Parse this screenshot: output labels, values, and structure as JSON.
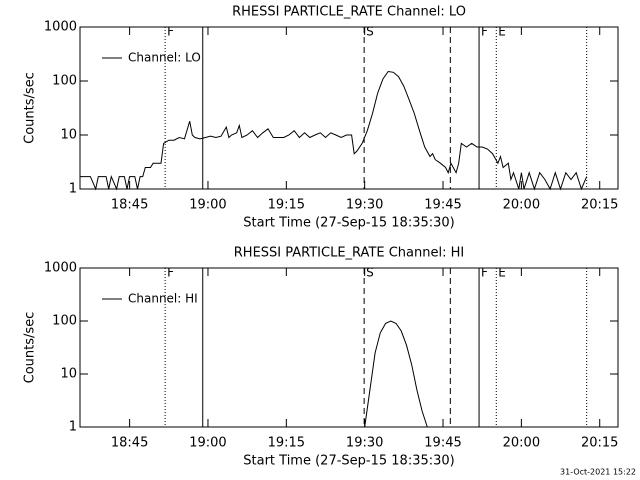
{
  "footer": "31-Oct-2021 15:22",
  "chart_data": [
    {
      "type": "line",
      "title": "RHESSI PARTICLE_RATE Channel: LO",
      "xlabel": "Start Time (27-Sep-15 18:35:30)",
      "ylabel": "Counts/sec",
      "log_y": true,
      "xlim": [
        0,
        103
      ],
      "ylim": [
        1,
        1000
      ],
      "xticks": [
        {
          "value": 9.5,
          "label": "18:45"
        },
        {
          "value": 24.5,
          "label": "19:00"
        },
        {
          "value": 39.5,
          "label": "19:15"
        },
        {
          "value": 54.5,
          "label": "19:30"
        },
        {
          "value": 69.5,
          "label": "19:45"
        },
        {
          "value": 84.5,
          "label": "20:00"
        },
        {
          "value": 99.5,
          "label": "20:15"
        }
      ],
      "yticks": [
        1,
        10,
        100,
        1000
      ],
      "legend": "upper left",
      "vlines": [
        {
          "x": 16.3,
          "style": "dotted",
          "label": "F"
        },
        {
          "x": 23.5,
          "style": "solid"
        },
        {
          "x": 54.4,
          "style": "dashed",
          "label": "S"
        },
        {
          "x": 70.9,
          "style": "dashed"
        },
        {
          "x": 76.4,
          "style": "solid",
          "label": "F"
        },
        {
          "x": 79.7,
          "style": "dotted",
          "label": "E"
        },
        {
          "x": 97.0,
          "style": "dotted"
        }
      ],
      "x": [
        0,
        2,
        3,
        3.5,
        5,
        5.5,
        6,
        7,
        7.5,
        8.5,
        9,
        9.5,
        10.5,
        11,
        11.5,
        12,
        12.5,
        13.5,
        14,
        15.5,
        16,
        17,
        18,
        19,
        20,
        21,
        21.5,
        22,
        23,
        24,
        25,
        26,
        27,
        28,
        28.5,
        29,
        30,
        30.5,
        31,
        32,
        33,
        34,
        35,
        36,
        37,
        38,
        39,
        40,
        41,
        42,
        43,
        44,
        45,
        46,
        47,
        48,
        49,
        50,
        51,
        52,
        52.5,
        53,
        54,
        55,
        56,
        57,
        58,
        59,
        60,
        61,
        62,
        63,
        64,
        65,
        66,
        67,
        67.5,
        68,
        69,
        70,
        70.5,
        71,
        72,
        72.5,
        73,
        74,
        75,
        76,
        77,
        78,
        79,
        80,
        80.5,
        81,
        82,
        82.5,
        83,
        84,
        84.5,
        85,
        86,
        87,
        88,
        89,
        90,
        91,
        92,
        93,
        94,
        95,
        96,
        97
      ],
      "series": [
        {
          "name": "Channel: LO",
          "color": "#000000",
          "values": [
            1.7,
            1.7,
            1,
            1.7,
            1.7,
            1,
            1.7,
            1,
            1.7,
            1.7,
            1,
            1.7,
            1.7,
            1,
            1.7,
            1.7,
            2.5,
            2.5,
            3,
            3,
            7,
            8,
            8,
            9,
            8.5,
            18,
            10,
            9,
            8.5,
            9,
            9.5,
            9,
            9.5,
            14,
            9,
            10,
            11,
            15,
            9,
            10,
            12,
            9,
            11,
            13,
            9,
            9,
            9,
            10,
            12,
            9,
            11,
            9,
            10,
            11,
            9,
            11,
            10,
            9,
            10,
            10,
            4.5,
            5,
            7,
            12,
            25,
            60,
            110,
            150,
            145,
            120,
            80,
            45,
            25,
            12,
            6,
            4,
            4.5,
            3.5,
            3,
            2.5,
            2,
            3,
            2,
            3,
            7,
            6,
            7,
            6,
            6,
            5.5,
            4.5,
            3,
            4,
            2.5,
            3,
            1.5,
            2,
            1,
            2,
            1,
            2,
            1,
            2,
            1.5,
            1,
            2,
            1,
            2,
            1.5,
            2,
            1,
            1.7
          ]
        }
      ]
    },
    {
      "type": "line",
      "title": "RHESSI PARTICLE_RATE Channel: HI",
      "xlabel": "Start Time (27-Sep-15 18:35:30)",
      "ylabel": "Counts/sec",
      "log_y": true,
      "xlim": [
        0,
        103
      ],
      "ylim": [
        1,
        1000
      ],
      "xticks": [
        {
          "value": 9.5,
          "label": "18:45"
        },
        {
          "value": 24.5,
          "label": "19:00"
        },
        {
          "value": 39.5,
          "label": "19:15"
        },
        {
          "value": 54.5,
          "label": "19:30"
        },
        {
          "value": 69.5,
          "label": "19:45"
        },
        {
          "value": 84.5,
          "label": "20:00"
        },
        {
          "value": 99.5,
          "label": "20:15"
        }
      ],
      "yticks": [
        1,
        10,
        100,
        1000
      ],
      "legend": "upper left",
      "vlines": [
        {
          "x": 16.3,
          "style": "dotted",
          "label": "F"
        },
        {
          "x": 23.5,
          "style": "solid"
        },
        {
          "x": 54.4,
          "style": "dashed",
          "label": "S"
        },
        {
          "x": 70.9,
          "style": "dashed"
        },
        {
          "x": 76.4,
          "style": "solid",
          "label": "F"
        },
        {
          "x": 79.7,
          "style": "dotted",
          "label": "E"
        },
        {
          "x": 97.0,
          "style": "dotted"
        }
      ],
      "x": [
        54.5,
        55.5,
        56.5,
        57.5,
        58.5,
        59.5,
        60.5,
        61.5,
        62.5,
        63.5,
        64.5,
        65.5,
        66.5
      ],
      "series": [
        {
          "name": "Channel: HI",
          "color": "#000000",
          "values": [
            1,
            5,
            25,
            60,
            90,
            100,
            90,
            65,
            35,
            15,
            5,
            2,
            1
          ]
        }
      ]
    }
  ]
}
